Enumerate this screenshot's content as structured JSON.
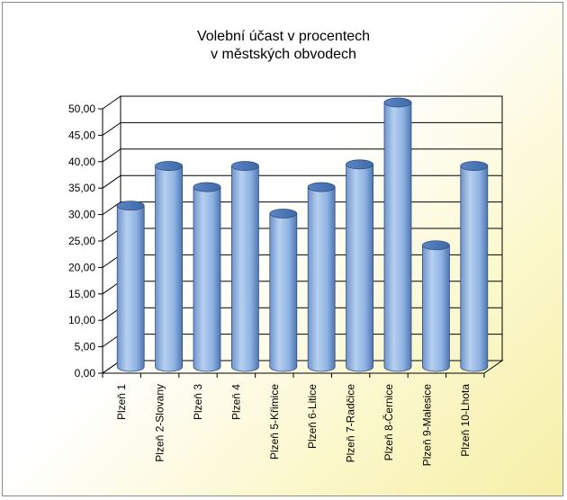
{
  "chart_data": {
    "type": "bar",
    "title_lines": [
      "Volební účast v procentech",
      "v městských obvodech"
    ],
    "categories": [
      "Plzeň 1",
      "Plzeň 2-Slovany",
      "Plzeň 3",
      "Plzeň 4",
      "Plzeň 5-Křimice",
      "Plzeň 6-Litice",
      "Plzeň 7-Radčice",
      "Plzeň 8-Černice",
      "Plzeň 9-Malesice",
      "Plzeň 10-Lhota"
    ],
    "values": [
      30.5,
      38.0,
      34.0,
      38.0,
      29.0,
      34.0,
      38.3,
      50.0,
      23.0,
      38.0
    ],
    "ylim": [
      0,
      50
    ],
    "yticks": [
      "0,00",
      "5,00",
      "10,00",
      "15,00",
      "20,00",
      "25,00",
      "30,00",
      "35,00",
      "40,00",
      "45,00",
      "50,00"
    ],
    "grid": true,
    "legend": "none",
    "bar_style": "3d-cylinder",
    "colors": {
      "bar": "#8fb3e3",
      "bar_dark": "#3f6aa8",
      "grid": "#000000",
      "background_highlight": "#f6efa8"
    }
  }
}
